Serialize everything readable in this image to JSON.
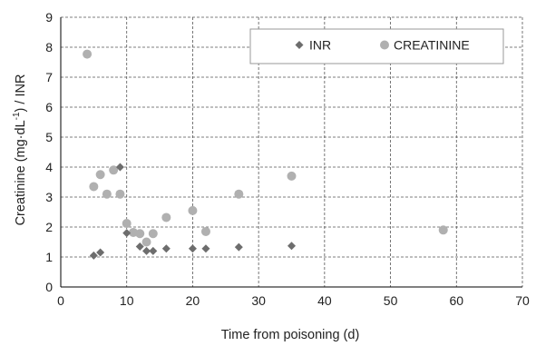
{
  "chart_data": {
    "type": "scatter",
    "xlabel": "Time from poisoning (d)",
    "ylabel_parts": [
      "Creatinine (mg·dL",
      "-1",
      ") / INR"
    ],
    "xlim": [
      0,
      70
    ],
    "ylim": [
      0,
      9
    ],
    "x_ticks": [
      "0",
      "10",
      "20",
      "30",
      "40",
      "50",
      "60",
      "70"
    ],
    "y_ticks": [
      "0",
      "1",
      "2",
      "3",
      "4",
      "5",
      "6",
      "7",
      "8",
      "9"
    ],
    "grid": true,
    "legend_position": "top-right",
    "series": [
      {
        "name": "INR",
        "marker": "diamond",
        "color": "#6d6d6d",
        "points": [
          [
            5,
            1.05
          ],
          [
            6,
            1.15
          ],
          [
            9,
            4.0
          ],
          [
            10,
            1.8
          ],
          [
            12,
            1.35
          ],
          [
            13,
            1.2
          ],
          [
            14,
            1.2
          ],
          [
            16,
            1.28
          ],
          [
            20,
            1.28
          ],
          [
            22,
            1.28
          ],
          [
            27,
            1.33
          ],
          [
            35,
            1.37
          ]
        ]
      },
      {
        "name": "CREATININE",
        "marker": "circle",
        "color": "#b0b0b0",
        "points": [
          [
            4,
            7.77
          ],
          [
            5,
            3.35
          ],
          [
            6,
            3.75
          ],
          [
            7,
            3.1
          ],
          [
            8,
            3.9
          ],
          [
            9,
            3.1
          ],
          [
            10,
            2.12
          ],
          [
            11,
            1.82
          ],
          [
            12,
            1.78
          ],
          [
            13,
            1.5
          ],
          [
            14,
            1.78
          ],
          [
            16,
            2.32
          ],
          [
            20,
            2.55
          ],
          [
            22,
            1.85
          ],
          [
            27,
            3.1
          ],
          [
            35,
            3.7
          ],
          [
            58,
            1.9
          ]
        ]
      }
    ]
  }
}
